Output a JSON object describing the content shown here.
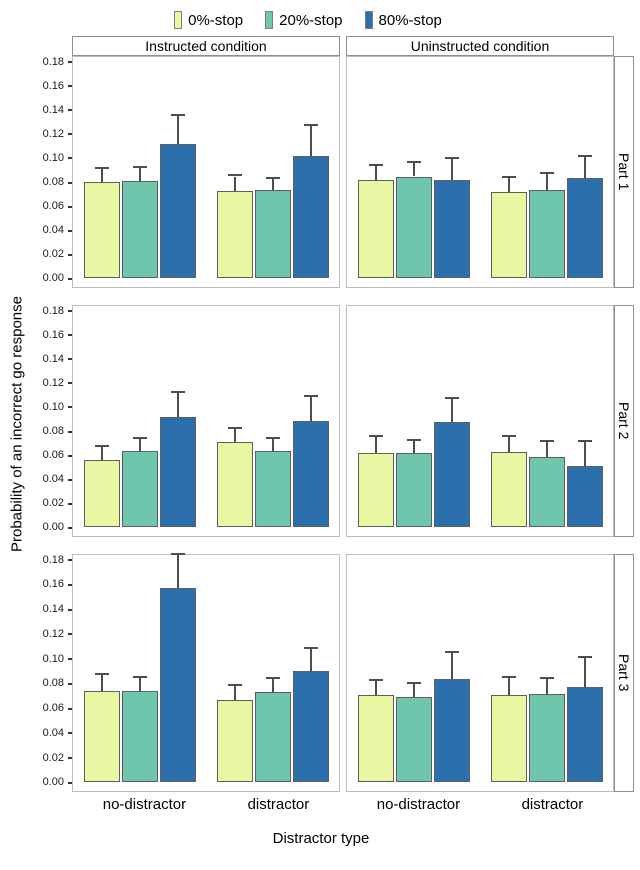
{
  "chart_data": {
    "type": "bar",
    "title": "",
    "xlabel": "Distractor type",
    "ylabel": "Probability of an incorrect go response",
    "facet_columns": [
      "Instructed condition",
      "Uninstructed condition"
    ],
    "facet_rows": [
      "Part 1",
      "Part 2",
      "Part 3"
    ],
    "x_categories": [
      "no-distractor",
      "distractor"
    ],
    "legend": [
      {
        "label": "0%-stop",
        "color": "#e9f6a2"
      },
      {
        "label": "20%-stop",
        "color": "#70c6ad"
      },
      {
        "label": "80%-stop",
        "color": "#2b6fad"
      }
    ],
    "ytick_labels": [
      "0.00",
      "0.02",
      "0.04",
      "0.06",
      "0.08",
      "0.10",
      "0.12",
      "0.14",
      "0.16",
      "0.18"
    ],
    "ylim": [
      -0.0075,
      0.185
    ],
    "grid": "off",
    "legend_position": "top",
    "error_bars": "upper standard error whiskers with caps",
    "panels": [
      {
        "facet_row": "Part 1",
        "facet_col": "Instructed condition",
        "groups": [
          {
            "x": "no-distractor",
            "bars": [
              {
                "series": "0%-stop",
                "value": 0.08,
                "error_high": 0.091
              },
              {
                "series": "20%-stop",
                "value": 0.081,
                "error_high": 0.092
              },
              {
                "series": "80%-stop",
                "value": 0.112,
                "error_high": 0.136
              }
            ]
          },
          {
            "x": "distractor",
            "bars": [
              {
                "series": "0%-stop",
                "value": 0.073,
                "error_high": 0.085
              },
              {
                "series": "20%-stop",
                "value": 0.074,
                "error_high": 0.083
              },
              {
                "series": "80%-stop",
                "value": 0.102,
                "error_high": 0.127
              }
            ]
          }
        ]
      },
      {
        "facet_row": "Part 1",
        "facet_col": "Uninstructed condition",
        "groups": [
          {
            "x": "no-distractor",
            "bars": [
              {
                "series": "0%-stop",
                "value": 0.082,
                "error_high": 0.094
              },
              {
                "series": "20%-stop",
                "value": 0.085,
                "error_high": 0.096
              },
              {
                "series": "80%-stop",
                "value": 0.082,
                "error_high": 0.1
              }
            ]
          },
          {
            "x": "distractor",
            "bars": [
              {
                "series": "0%-stop",
                "value": 0.072,
                "error_high": 0.084
              },
              {
                "series": "20%-stop",
                "value": 0.074,
                "error_high": 0.087
              },
              {
                "series": "80%-stop",
                "value": 0.084,
                "error_high": 0.101
              }
            ]
          }
        ]
      },
      {
        "facet_row": "Part 2",
        "facet_col": "Instructed condition",
        "groups": [
          {
            "x": "no-distractor",
            "bars": [
              {
                "series": "0%-stop",
                "value": 0.056,
                "error_high": 0.067
              },
              {
                "series": "20%-stop",
                "value": 0.064,
                "error_high": 0.074
              },
              {
                "series": "80%-stop",
                "value": 0.092,
                "error_high": 0.112
              }
            ]
          },
          {
            "x": "distractor",
            "bars": [
              {
                "series": "0%-stop",
                "value": 0.071,
                "error_high": 0.082
              },
              {
                "series": "20%-stop",
                "value": 0.064,
                "error_high": 0.074
              },
              {
                "series": "80%-stop",
                "value": 0.089,
                "error_high": 0.109
              }
            ]
          }
        ]
      },
      {
        "facet_row": "Part 2",
        "facet_col": "Uninstructed condition",
        "groups": [
          {
            "x": "no-distractor",
            "bars": [
              {
                "series": "0%-stop",
                "value": 0.062,
                "error_high": 0.075
              },
              {
                "series": "20%-stop",
                "value": 0.062,
                "error_high": 0.072
              },
              {
                "series": "80%-stop",
                "value": 0.088,
                "error_high": 0.107
              }
            ]
          },
          {
            "x": "distractor",
            "bars": [
              {
                "series": "0%-stop",
                "value": 0.063,
                "error_high": 0.075
              },
              {
                "series": "20%-stop",
                "value": 0.059,
                "error_high": 0.071
              },
              {
                "series": "80%-stop",
                "value": 0.051,
                "error_high": 0.071
              }
            ]
          }
        ]
      },
      {
        "facet_row": "Part 3",
        "facet_col": "Instructed condition",
        "groups": [
          {
            "x": "no-distractor",
            "bars": [
              {
                "series": "0%-stop",
                "value": 0.074,
                "error_high": 0.087
              },
              {
                "series": "20%-stop",
                "value": 0.074,
                "error_high": 0.085
              },
              {
                "series": "80%-stop",
                "value": 0.158,
                "error_high": 0.185
              }
            ]
          },
          {
            "x": "distractor",
            "bars": [
              {
                "series": "0%-stop",
                "value": 0.067,
                "error_high": 0.078
              },
              {
                "series": "20%-stop",
                "value": 0.073,
                "error_high": 0.084
              },
              {
                "series": "80%-stop",
                "value": 0.09,
                "error_high": 0.108
              }
            ]
          }
        ]
      },
      {
        "facet_row": "Part 3",
        "facet_col": "Uninstructed condition",
        "groups": [
          {
            "x": "no-distractor",
            "bars": [
              {
                "series": "0%-stop",
                "value": 0.071,
                "error_high": 0.082
              },
              {
                "series": "20%-stop",
                "value": 0.069,
                "error_high": 0.08
              },
              {
                "series": "80%-stop",
                "value": 0.084,
                "error_high": 0.105
              }
            ]
          },
          {
            "x": "distractor",
            "bars": [
              {
                "series": "0%-stop",
                "value": 0.071,
                "error_high": 0.085
              },
              {
                "series": "20%-stop",
                "value": 0.072,
                "error_high": 0.084
              },
              {
                "series": "80%-stop",
                "value": 0.077,
                "error_high": 0.101
              }
            ]
          }
        ]
      }
    ]
  }
}
